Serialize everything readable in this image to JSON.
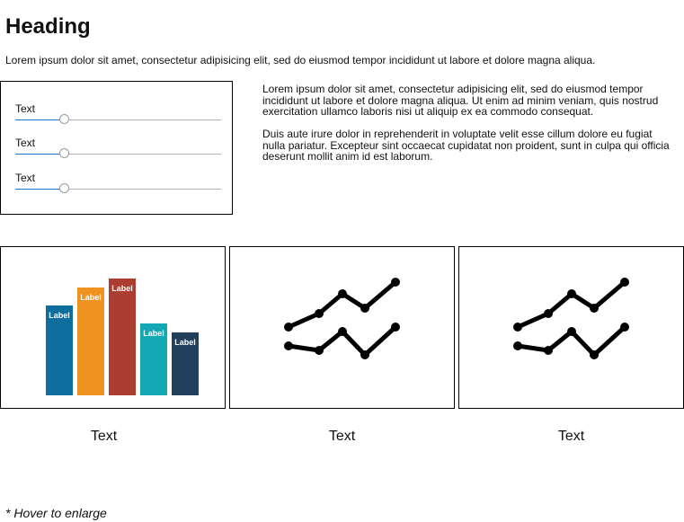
{
  "heading": "Heading",
  "intro": "Lorem ipsum dolor sit amet, consectetur adipisicing elit, sed do eiusmod tempor incididunt ut labore et dolore magna aliqua.",
  "sliders": [
    {
      "label": "Text",
      "value": 0.24
    },
    {
      "label": "Text",
      "value": 0.24
    },
    {
      "label": "Text",
      "value": 0.24
    }
  ],
  "paragraphs": [
    "Lorem ipsum dolor sit amet, consectetur adipisicing elit, sed do eiusmod tempor incididunt ut labore et dolore magna aliqua. Ut enim ad minim veniam, quis nostrud exercitation ullamco laboris nisi ut aliquip ex ea commodo consequat.",
    "Duis aute irure dolor in reprehenderit in voluptate velit esse cillum dolore eu fugiat nulla pariatur. Excepteur sint occaecat cupidatat non proident, sunt in culpa qui officia deserunt mollit anim id est laborum."
  ],
  "cards": [
    {
      "caption": "Text",
      "chart": {
        "type": "bar",
        "bars": [
          {
            "label": "Label",
            "value": 100,
            "color": "#0e6f9e"
          },
          {
            "label": "Label",
            "value": 120,
            "color": "#f0921f"
          },
          {
            "label": "Label",
            "value": 130,
            "color": "#ab3e30"
          },
          {
            "label": "Label",
            "value": 80,
            "color": "#14a8b5"
          },
          {
            "label": "Label",
            "value": 70,
            "color": "#223f5b"
          }
        ]
      }
    },
    {
      "caption": "Text",
      "chart": {
        "type": "line",
        "series": [
          {
            "values": [
              0,
              15,
              37,
              21,
              50
            ]
          },
          {
            "values": [
              15,
              10,
              31,
              5,
              36
            ]
          }
        ]
      }
    },
    {
      "caption": "Text",
      "chart": {
        "type": "line",
        "series": [
          {
            "values": [
              0,
              15,
              37,
              21,
              50
            ]
          },
          {
            "values": [
              15,
              10,
              31,
              5,
              36
            ]
          }
        ]
      }
    }
  ],
  "footnote": "* Hover to enlarge"
}
